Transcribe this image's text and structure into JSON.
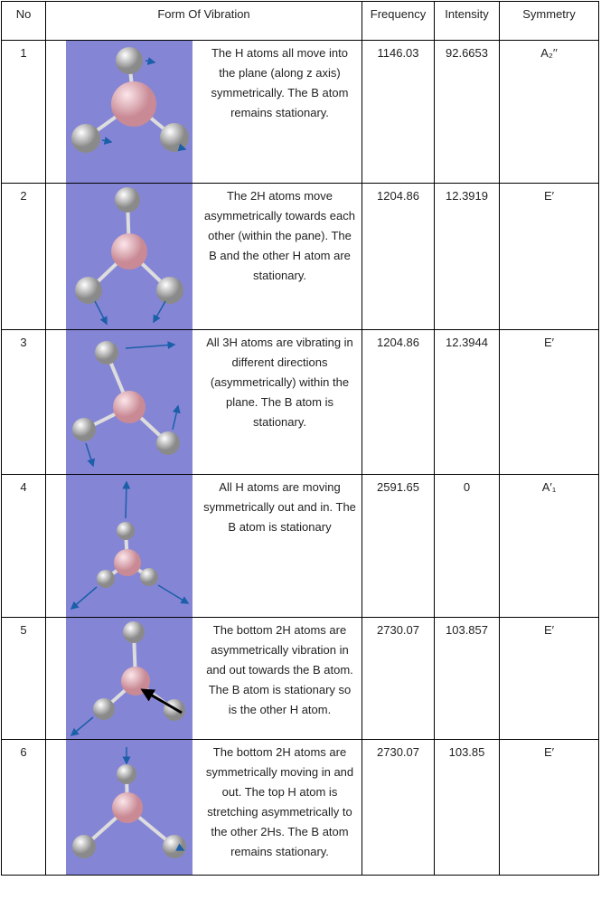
{
  "headers": {
    "no": "No",
    "form": "Form Of Vibration",
    "frequency": "Frequency",
    "intensity": "Intensity",
    "symmetry": "Symmetry"
  },
  "colors": {
    "image_background": "#8585d6",
    "boron_atom": "#e8b0b8",
    "hydrogen_atom": "#e0e0e0",
    "vector_arrow": "#1a5fa8"
  },
  "rows": [
    {
      "no": "1",
      "description": "The H atoms all move into the plane (along z axis) symmetrically. The B atom remains stationary.",
      "frequency": "1146.03",
      "intensity": "92.6653",
      "symmetry": "A₂′′"
    },
    {
      "no": "2",
      "description": "The 2H atoms move asymmetrically towards each other (within the pane). The B and the other H atom are stationary.",
      "frequency": "1204.86",
      "intensity": "12.3919",
      "symmetry": "E′"
    },
    {
      "no": "3",
      "description": "All 3H atoms are vibrating in different directions (asymmetrically) within the plane.  The B atom is stationary.",
      "frequency": "1204.86",
      "intensity": "12.3944",
      "symmetry": "E′"
    },
    {
      "no": "4",
      "description": "All H atoms are moving symmetrically out and in. The B atom is stationary",
      "frequency": "2591.65",
      "intensity": "0",
      "symmetry": "A′₁"
    },
    {
      "no": "5",
      "description": "The bottom 2H atoms are asymmetrically vibration in and out towards the B atom. The B atom is stationary so is the other H atom.",
      "frequency": "2730.07",
      "intensity": "103.857",
      "symmetry": "E′"
    },
    {
      "no": "6",
      "description": "The bottom 2H atoms are symmetrically moving in and out. The top H atom is stretching asymmetrically to the other 2Hs. The B atom remains stationary.",
      "frequency": "2730.07",
      "intensity": "103.85",
      "symmetry": "E′"
    }
  ]
}
